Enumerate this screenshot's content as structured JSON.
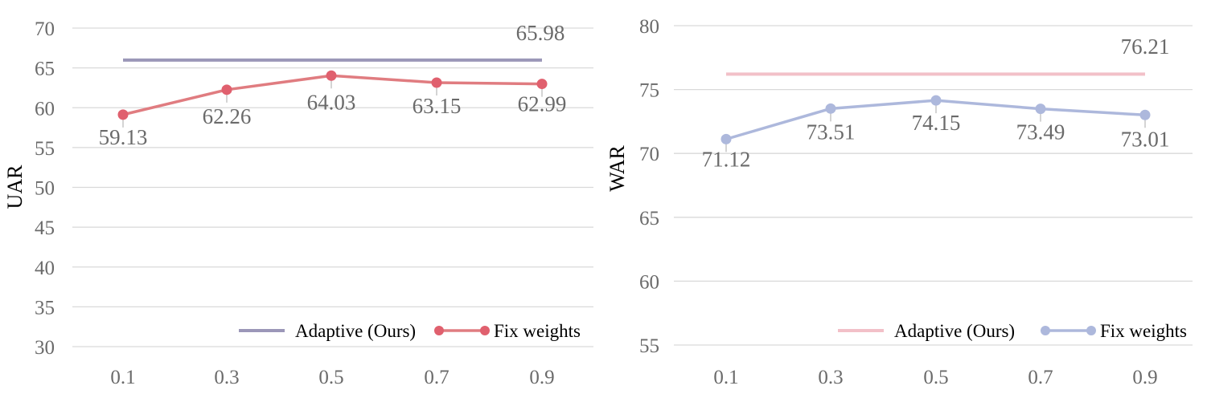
{
  "chart_data": [
    {
      "type": "line",
      "x": [
        "0.1",
        "0.3",
        "0.5",
        "0.7",
        "0.9"
      ],
      "ylabel": "UAR",
      "xlabel": "",
      "ylim": [
        30,
        70
      ],
      "yticks": [
        30,
        35,
        40,
        45,
        50,
        55,
        60,
        65,
        70
      ],
      "grid": true,
      "legend_position": "bottom-right",
      "series": [
        {
          "name": "Adaptive (Ours)",
          "values": [
            65.98,
            65.98,
            65.98,
            65.98,
            65.98
          ],
          "color": "#9b97b8",
          "markers": false,
          "label_text": "65.98"
        },
        {
          "name": "Fix weights",
          "values": [
            59.13,
            62.26,
            64.03,
            63.15,
            62.99
          ],
          "color": "#e07c80",
          "marker_color": "#e0606e",
          "markers": true,
          "labels": [
            "59.13",
            "62.26",
            "64.03",
            "63.15",
            "62.99"
          ]
        }
      ]
    },
    {
      "type": "line",
      "x": [
        "0.1",
        "0.3",
        "0.5",
        "0.7",
        "0.9"
      ],
      "ylabel": "WAR",
      "xlabel": "",
      "ylim": [
        55,
        80
      ],
      "yticks": [
        55,
        60,
        65,
        70,
        75,
        80
      ],
      "grid": true,
      "legend_position": "bottom-right",
      "series": [
        {
          "name": "Adaptive (Ours)",
          "values": [
            76.21,
            76.21,
            76.21,
            76.21,
            76.21
          ],
          "color": "#f2c0c8",
          "markers": false,
          "label_text": "76.21"
        },
        {
          "name": "Fix weights",
          "values": [
            71.12,
            73.51,
            74.15,
            73.49,
            73.01
          ],
          "color": "#adb8dc",
          "marker_color": "#adb8dc",
          "markers": true,
          "labels": [
            "71.12",
            "73.51",
            "74.15",
            "73.49",
            "73.01"
          ]
        }
      ]
    }
  ]
}
